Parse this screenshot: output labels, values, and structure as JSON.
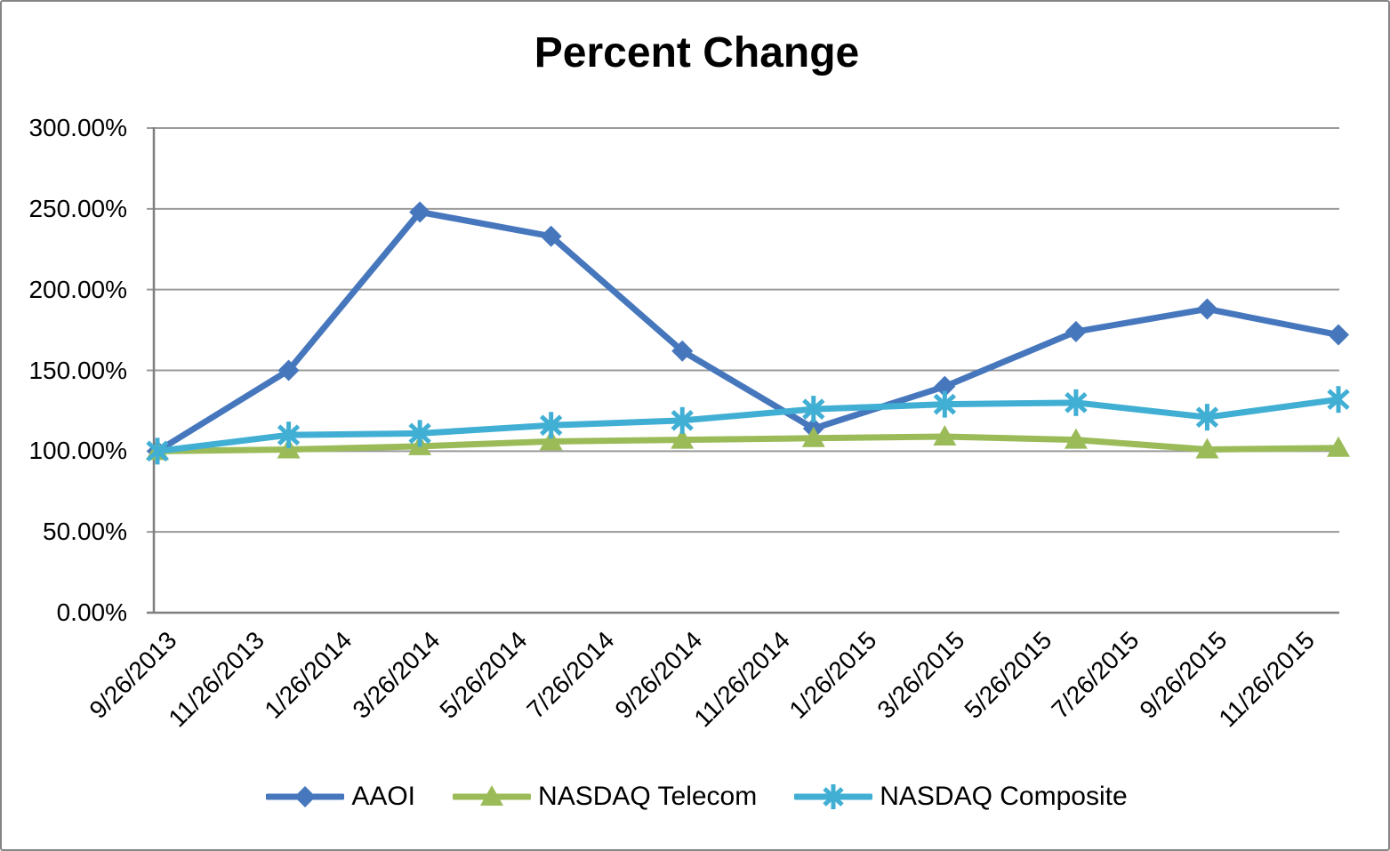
{
  "title": "Percent Change",
  "chart_data": {
    "type": "line",
    "title": "Percent Change",
    "xlabel": "",
    "ylabel": "",
    "grid": true,
    "legend_position": "bottom",
    "ylim": [
      0,
      300
    ],
    "y_axis": {
      "ticks": [
        {
          "value": 300,
          "label": "300.00%"
        },
        {
          "value": 250,
          "label": "250.00%"
        },
        {
          "value": 200,
          "label": "200.00%"
        },
        {
          "value": 150,
          "label": "150.00%"
        },
        {
          "value": 100,
          "label": "100.00%"
        },
        {
          "value": 50,
          "label": "50.00%"
        },
        {
          "value": 0,
          "label": "0.00%"
        }
      ]
    },
    "x_axis": {
      "span_months": [
        0,
        27
      ],
      "tick_labels": [
        {
          "month": 0,
          "label": "9/26/2013"
        },
        {
          "month": 2,
          "label": "11/26/2013"
        },
        {
          "month": 4,
          "label": "1/26/2014"
        },
        {
          "month": 6,
          "label": "3/26/2014"
        },
        {
          "month": 8,
          "label": "5/26/2014"
        },
        {
          "month": 10,
          "label": "7/26/2014"
        },
        {
          "month": 12,
          "label": "9/26/2014"
        },
        {
          "month": 14,
          "label": "11/26/2014"
        },
        {
          "month": 16,
          "label": "1/26/2015"
        },
        {
          "month": 18,
          "label": "3/26/2015"
        },
        {
          "month": 20,
          "label": "5/26/2015"
        },
        {
          "month": 22,
          "label": "7/26/2015"
        },
        {
          "month": 24,
          "label": "9/26/2015"
        },
        {
          "month": 26,
          "label": "11/26/2015"
        }
      ]
    },
    "point_months": [
      0,
      3,
      6,
      9,
      12,
      15,
      18,
      21,
      24,
      27
    ],
    "point_dates": [
      "9/26/2013",
      "12/26/2013",
      "3/26/2014",
      "6/26/2014",
      "9/26/2014",
      "12/26/2014",
      "3/26/2015",
      "6/26/2015",
      "9/26/2015",
      "12/26/2015"
    ],
    "series": [
      {
        "name": "AAOI",
        "color": "#4677BD",
        "marker": "diamond",
        "values": [
          100,
          150,
          248,
          233,
          162,
          114,
          140,
          174,
          188,
          172
        ]
      },
      {
        "name": "NASDAQ Telecom",
        "color": "#9BBB59",
        "marker": "triangle",
        "values": [
          100,
          101,
          103,
          106,
          107,
          108,
          109,
          107,
          101,
          102
        ]
      },
      {
        "name": "NASDAQ Composite",
        "color": "#41AFD4",
        "marker": "asterisk",
        "values": [
          100,
          110,
          111,
          116,
          119,
          126,
          129,
          130,
          121,
          132
        ]
      }
    ],
    "style": {
      "gridline_color": "#9a9a9a",
      "axis_color": "#7f7f7f",
      "text_color": "#000000",
      "background": "#ffffff"
    }
  }
}
